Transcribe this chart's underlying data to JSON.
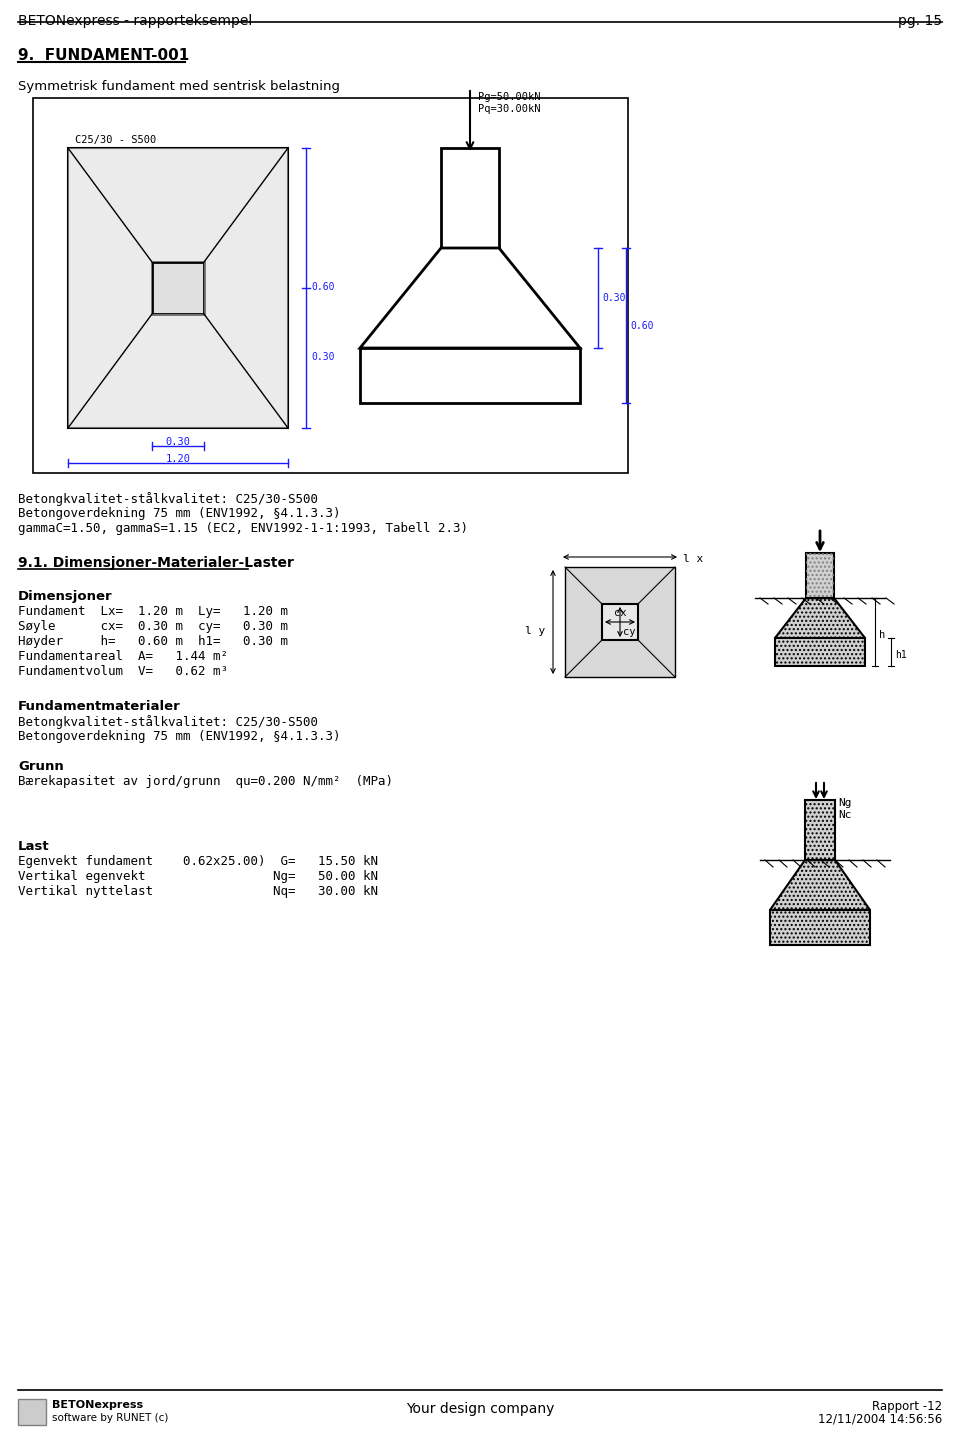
{
  "page_title": "BETONexpress - rapporteksempel",
  "page_num": "pg. 15",
  "section_title": "9.  FUNDAMENT-001",
  "subtitle": "Symmetrisk fundament med sentrisk belastning",
  "material_label": "C25/30 - S500",
  "load_label1": "Pg=50.00kN",
  "load_label2": "Pq=30.00kN",
  "text_block1": "Betongkvalitet-stålkvalitet: C25/30-S500",
  "text_block2": "Betongoverdekning 75 mm (ENV1992, §4.1.3.3)",
  "text_block3": "gammaC=1.50, gammaS=1.15 (EC2, ENV1992-1-1:1993, Tabell 2.3)",
  "section2_title": "9.1. Dimensjoner-Materialer-Laster",
  "ds_title": "Dimensjoner",
  "ds_lines": [
    "Fundament  Lx=  1.20 m  Ly=   1.20 m",
    "Søyle      cx=  0.30 m  cy=   0.30 m",
    "Høyder     h=   0.60 m  h1=   0.30 m",
    "Fundamentareal  A=   1.44 m²",
    "Fundamentvolum  V=   0.62 m³"
  ],
  "fm_title": "Fundamentmaterialer",
  "fm_lines": [
    "Betongkvalitet-stålkvalitet: C25/30-S500",
    "Betongoverdekning 75 mm (ENV1992, §4.1.3.3)"
  ],
  "grunn_title": "Grunn",
  "grunn_line": "Bærekapasitet av jord/grunn  qu=0.200 N/mm²  (MPa)",
  "last_title": "Last",
  "last_lines": [
    "Egenvekt fundament    0.62x25.00)  G=   15.50 kN",
    "Vertikal egenvekt                 Ng=   50.00 kN",
    "Vertikal nyttelast                Nq=   30.00 kN"
  ],
  "footer_left1": "BETONexpress",
  "footer_left2": "software by RUNET (c)",
  "footer_center": "Your design company",
  "footer_right1": "Rapport -12",
  "footer_right2": "12/11/2004 14:56:56",
  "blue": "#1a1aff",
  "black": "#000000",
  "gray": "#888888",
  "lightgray": "#cccccc",
  "white": "#ffffff"
}
